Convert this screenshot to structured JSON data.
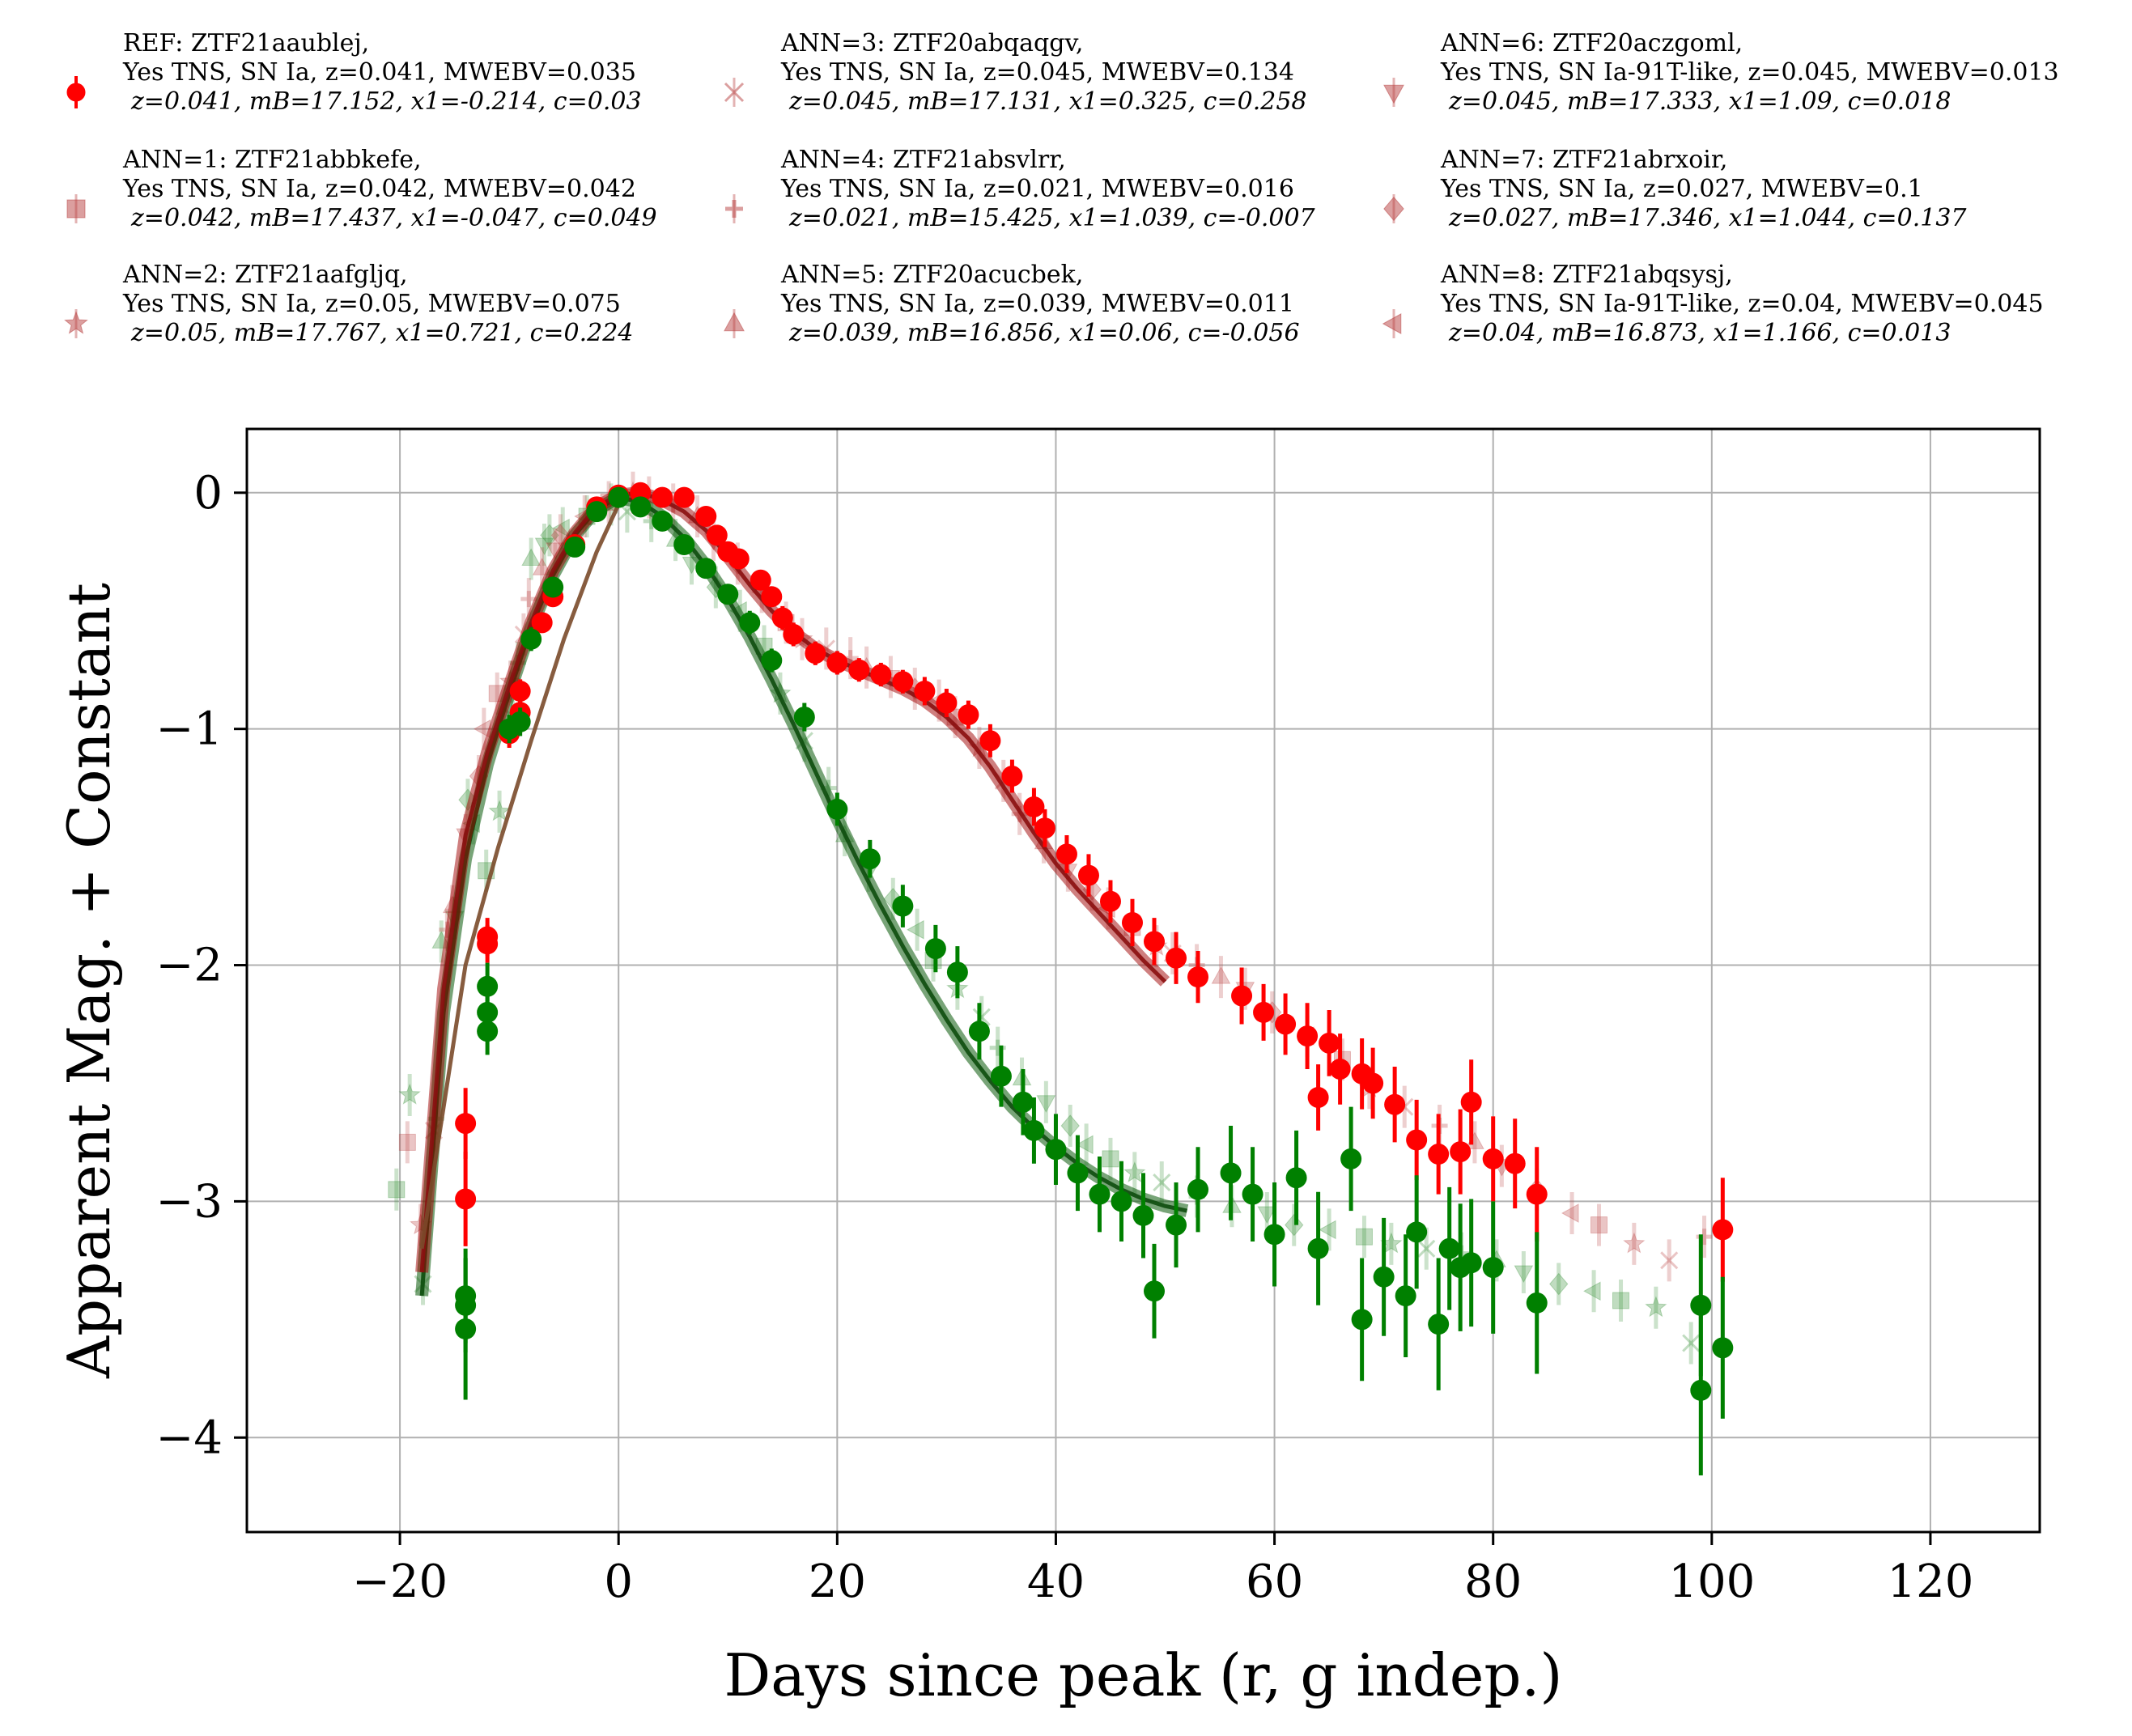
{
  "chart_data": {
    "type": "scatter",
    "xlabel": "Days since peak (r, g indep.)",
    "ylabel": "Apparent Mag. + Constant",
    "xlim": [
      -34,
      130
    ],
    "ylim": [
      -4.4,
      0.27
    ],
    "y_inverted": true,
    "x_ticks": [
      -20,
      0,
      20,
      40,
      60,
      80,
      100,
      120
    ],
    "y_ticks": [
      0,
      -1,
      -2,
      -3,
      -4
    ],
    "x_tick_labels": [
      "−20",
      "0",
      "20",
      "40",
      "60",
      "80",
      "100",
      "120"
    ],
    "y_tick_labels": [
      "0",
      "−1",
      "−2",
      "−3",
      "−4"
    ],
    "grid": true,
    "legend_position": "top",
    "band_colors": {
      "r": "#ff0000",
      "g": "#008000"
    },
    "legend": [
      {
        "marker": "circle",
        "line1": "REF: ZTF21aaublej,",
        "line2": "Yes TNS, SN Ia, z=0.041, MWEBV=0.035",
        "line3": "z=0.041, mB=17.152, x1=-0.214, c=0.03"
      },
      {
        "marker": "square",
        "line1": "ANN=1: ZTF21abbkefe,",
        "line2": "Yes TNS, SN Ia, z=0.042, MWEBV=0.042",
        "line3": "z=0.042, mB=17.437, x1=-0.047, c=0.049"
      },
      {
        "marker": "star",
        "line1": "ANN=2: ZTF21aafgljq,",
        "line2": "Yes TNS, SN Ia, z=0.05, MWEBV=0.075",
        "line3": "z=0.05, mB=17.767, x1=0.721, c=0.224"
      },
      {
        "marker": "x",
        "line1": "ANN=3: ZTF20abqaqgv,",
        "line2": "Yes TNS, SN Ia, z=0.045, MWEBV=0.134",
        "line3": "z=0.045, mB=17.131, x1=0.325, c=0.258"
      },
      {
        "marker": "plus",
        "line1": "ANN=4: ZTF21absvlrr,",
        "line2": "Yes TNS, SN Ia, z=0.021, MWEBV=0.016",
        "line3": "z=0.021, mB=15.425, x1=1.039, c=-0.007"
      },
      {
        "marker": "triangle-up",
        "line1": "ANN=5: ZTF20acucbek,",
        "line2": "Yes TNS, SN Ia, z=0.039, MWEBV=0.011",
        "line3": "z=0.039, mB=16.856, x1=0.06, c=-0.056"
      },
      {
        "marker": "triangle-down",
        "line1": "ANN=6: ZTF20aczgoml,",
        "line2": "Yes TNS, SN Ia-91T-like, z=0.045, MWEBV=0.013",
        "line3": "z=0.045, mB=17.333, x1=1.09, c=0.018"
      },
      {
        "marker": "diamond",
        "line1": "ANN=7: ZTF21abrxoir,",
        "line2": "Yes TNS, SN Ia, z=0.027, MWEBV=0.1",
        "line3": "z=0.027, mB=17.346, x1=1.044, c=0.137"
      },
      {
        "marker": "triangle-left",
        "line1": "ANN=8: ZTF21abqsysj,",
        "line2": "Yes TNS, SN Ia-91T-like, z=0.04, MWEBV=0.045",
        "line3": "z=0.04, mB=16.873, x1=1.166, c=0.013"
      }
    ],
    "series": [
      {
        "band": "r",
        "x": [
          -14,
          -14,
          -12,
          -12,
          -10,
          -9,
          -9,
          -7,
          -6,
          -4,
          -2,
          0,
          2,
          4,
          6,
          8,
          9,
          10,
          11,
          13,
          14,
          15,
          16,
          18,
          20,
          22,
          24,
          26,
          28,
          30,
          32,
          34,
          36,
          38,
          39,
          41,
          43,
          45,
          47,
          49,
          51,
          53,
          57,
          59,
          61,
          63,
          64,
          65,
          66,
          68,
          69,
          71,
          73,
          75,
          77,
          78,
          80,
          82,
          84,
          101
        ],
        "y": [
          -2.67,
          -2.99,
          -1.91,
          -1.88,
          -1.02,
          -0.93,
          -0.84,
          -0.55,
          -0.44,
          -0.22,
          -0.06,
          -0.01,
          0.0,
          -0.02,
          -0.02,
          -0.1,
          -0.18,
          -0.25,
          -0.28,
          -0.37,
          -0.44,
          -0.53,
          -0.6,
          -0.68,
          -0.72,
          -0.75,
          -0.77,
          -0.8,
          -0.84,
          -0.89,
          -0.94,
          -1.05,
          -1.2,
          -1.33,
          -1.42,
          -1.53,
          -1.62,
          -1.73,
          -1.82,
          -1.9,
          -1.97,
          -2.05,
          -2.13,
          -2.2,
          -2.25,
          -2.3,
          -2.56,
          -2.33,
          -2.44,
          -2.46,
          -2.5,
          -2.59,
          -2.74,
          -2.8,
          -2.79,
          -2.58,
          -2.82,
          -2.84,
          -2.97,
          -3.12
        ],
        "yerr": [
          0.15,
          0.2,
          0.08,
          0.08,
          0.06,
          0.05,
          0.05,
          0.04,
          0.04,
          0.03,
          0.03,
          0.03,
          0.03,
          0.03,
          0.03,
          0.03,
          0.04,
          0.04,
          0.04,
          0.04,
          0.04,
          0.05,
          0.05,
          0.05,
          0.05,
          0.05,
          0.05,
          0.05,
          0.06,
          0.06,
          0.06,
          0.07,
          0.07,
          0.08,
          0.08,
          0.08,
          0.09,
          0.09,
          0.1,
          0.1,
          0.11,
          0.11,
          0.12,
          0.12,
          0.13,
          0.14,
          0.14,
          0.14,
          0.15,
          0.15,
          0.15,
          0.16,
          0.17,
          0.17,
          0.18,
          0.18,
          0.18,
          0.19,
          0.2,
          0.22
        ]
      },
      {
        "band": "g",
        "x": [
          -14,
          -14,
          -14,
          -12,
          -12,
          -12,
          -10,
          -9,
          -8,
          -6,
          -4,
          -2,
          0,
          2,
          4,
          6,
          8,
          10,
          12,
          14,
          17,
          20,
          23,
          26,
          29,
          31,
          33,
          35,
          37,
          38,
          40,
          42,
          44,
          46,
          48,
          49,
          51,
          53,
          56,
          58,
          60,
          62,
          64,
          67,
          68,
          70,
          72,
          73,
          75,
          76,
          77,
          78,
          80,
          84,
          99,
          99,
          101
        ],
        "y": [
          -3.4,
          -3.44,
          -3.54,
          -2.09,
          -2.2,
          -2.28,
          -1.0,
          -0.97,
          -0.62,
          -0.4,
          -0.23,
          -0.08,
          -0.02,
          -0.06,
          -0.12,
          -0.22,
          -0.32,
          -0.43,
          -0.55,
          -0.71,
          -0.95,
          -1.34,
          -1.55,
          -1.75,
          -1.93,
          -2.03,
          -2.28,
          -2.47,
          -2.58,
          -2.7,
          -2.78,
          -2.88,
          -2.97,
          -3.0,
          -3.06,
          -3.38,
          -3.1,
          -2.95,
          -2.88,
          -2.97,
          -3.14,
          -2.9,
          -3.2,
          -2.82,
          -3.5,
          -3.32,
          -3.4,
          -3.13,
          -3.52,
          -3.2,
          -3.28,
          -3.26,
          -3.28,
          -3.43,
          -3.44,
          -3.8,
          -3.62
        ],
        "yerr": [
          0.2,
          0.2,
          0.3,
          0.1,
          0.1,
          0.1,
          0.06,
          0.06,
          0.05,
          0.04,
          0.04,
          0.03,
          0.03,
          0.03,
          0.03,
          0.03,
          0.04,
          0.04,
          0.05,
          0.05,
          0.06,
          0.07,
          0.08,
          0.09,
          0.1,
          0.11,
          0.12,
          0.13,
          0.14,
          0.14,
          0.15,
          0.16,
          0.16,
          0.17,
          0.18,
          0.2,
          0.18,
          0.18,
          0.2,
          0.2,
          0.22,
          0.2,
          0.24,
          0.22,
          0.26,
          0.25,
          0.26,
          0.24,
          0.28,
          0.26,
          0.27,
          0.27,
          0.28,
          0.3,
          0.3,
          0.36,
          0.3
        ]
      }
    ],
    "neighbor_band_r": {
      "x": [
        -19,
        -18,
        -17,
        -16,
        -15,
        -14,
        -13,
        -12,
        -11,
        -10,
        -9,
        -8,
        -7,
        -6,
        -5,
        -3,
        -1,
        1,
        3,
        5,
        7,
        9,
        11,
        13,
        15,
        17,
        19,
        21,
        23,
        25,
        27,
        29,
        31,
        33,
        35,
        37,
        39,
        41,
        43,
        45,
        47,
        49,
        51,
        53,
        55,
        57,
        60,
        63,
        66,
        69,
        72,
        75,
        78,
        81,
        84,
        87,
        90,
        93,
        96,
        99
      ],
      "y": [
        -2.75,
        -3.1,
        -2.7,
        -1.85,
        -1.75,
        -1.45,
        -1.2,
        -1.0,
        -0.85,
        -0.8,
        -0.6,
        -0.45,
        -0.32,
        -0.24,
        -0.18,
        -0.1,
        -0.04,
        0.0,
        -0.02,
        -0.05,
        -0.1,
        -0.2,
        -0.3,
        -0.42,
        -0.55,
        -0.62,
        -0.66,
        -0.7,
        -0.74,
        -0.78,
        -0.83,
        -0.88,
        -0.95,
        -1.08,
        -1.22,
        -1.36,
        -1.48,
        -1.6,
        -1.68,
        -1.76,
        -1.84,
        -1.92,
        -1.95,
        -2.0,
        -2.05,
        -2.1,
        -2.2,
        -2.3,
        -2.4,
        -2.52,
        -2.6,
        -2.68,
        -2.75,
        -2.85,
        -2.95,
        -3.05,
        -3.1,
        -3.18,
        -3.25,
        -3.15
      ]
    },
    "neighbor_band_g": {
      "x": [
        -20,
        -19,
        -18,
        -17,
        -16,
        -15,
        -14,
        -13,
        -12,
        -11,
        -10,
        -9,
        -8,
        -7,
        -6,
        -5,
        -3,
        -1,
        1,
        3,
        5,
        7,
        9,
        11,
        13,
        15,
        17,
        19,
        21,
        23,
        25,
        27,
        29,
        31,
        33,
        35,
        37,
        39,
        41,
        43,
        45,
        47,
        50,
        53,
        56,
        59,
        62,
        65,
        68,
        71,
        74,
        77,
        80,
        83,
        86,
        89,
        92,
        95,
        98
      ],
      "y": [
        -2.95,
        -2.55,
        -3.35,
        -2.65,
        -1.9,
        -1.8,
        -1.3,
        -1.4,
        -1.6,
        -1.35,
        -0.95,
        -0.72,
        -0.28,
        -0.22,
        -0.18,
        -0.15,
        -0.1,
        -0.05,
        -0.08,
        -0.12,
        -0.2,
        -0.3,
        -0.4,
        -0.5,
        -0.65,
        -0.85,
        -1.05,
        -1.25,
        -1.45,
        -1.6,
        -1.72,
        -1.85,
        -1.98,
        -2.1,
        -2.22,
        -2.35,
        -2.48,
        -2.58,
        -2.68,
        -2.76,
        -2.82,
        -2.88,
        -2.92,
        -2.98,
        -3.02,
        -3.05,
        -3.1,
        -3.12,
        -3.15,
        -3.18,
        -3.2,
        -3.22,
        -3.25,
        -3.3,
        -3.35,
        -3.38,
        -3.42,
        -3.45,
        -3.6
      ]
    },
    "fits": {
      "r_x": [
        -18,
        -16,
        -14,
        -12,
        -10,
        -8,
        -6,
        -4,
        -2,
        0,
        2,
        4,
        6,
        8,
        10,
        12,
        14,
        16,
        18,
        20,
        22,
        24,
        26,
        28,
        30,
        32,
        34,
        36,
        38,
        40,
        42,
        44,
        46,
        48,
        50
      ],
      "r_y": [
        -3.3,
        -2.1,
        -1.45,
        -1.1,
        -0.82,
        -0.55,
        -0.33,
        -0.17,
        -0.06,
        -0.01,
        0.0,
        -0.03,
        -0.08,
        -0.16,
        -0.27,
        -0.39,
        -0.5,
        -0.59,
        -0.66,
        -0.71,
        -0.75,
        -0.79,
        -0.83,
        -0.88,
        -0.95,
        -1.04,
        -1.16,
        -1.3,
        -1.44,
        -1.57,
        -1.68,
        -1.78,
        -1.88,
        -1.98,
        -2.07
      ],
      "g_x": [
        -18,
        -16,
        -14,
        -12,
        -10,
        -8,
        -6,
        -4,
        -2,
        0,
        2,
        4,
        6,
        8,
        10,
        12,
        14,
        16,
        18,
        20,
        22,
        24,
        26,
        28,
        30,
        32,
        34,
        36,
        38,
        40,
        42,
        44,
        46,
        48,
        50,
        52
      ],
      "g_y": [
        -3.4,
        -2.2,
        -1.55,
        -1.15,
        -0.85,
        -0.57,
        -0.35,
        -0.18,
        -0.07,
        -0.02,
        -0.04,
        -0.1,
        -0.19,
        -0.31,
        -0.45,
        -0.61,
        -0.79,
        -0.98,
        -1.18,
        -1.38,
        -1.57,
        -1.75,
        -1.92,
        -2.08,
        -2.23,
        -2.37,
        -2.49,
        -2.6,
        -2.69,
        -2.77,
        -2.84,
        -2.9,
        -2.95,
        -2.99,
        -3.02,
        -3.04
      ],
      "brown_x": [
        -18,
        -14,
        -11,
        -8,
        -5,
        -2,
        0
      ],
      "brown_y": [
        -3.2,
        -2.0,
        -1.5,
        -1.05,
        -0.62,
        -0.25,
        -0.05
      ]
    }
  }
}
